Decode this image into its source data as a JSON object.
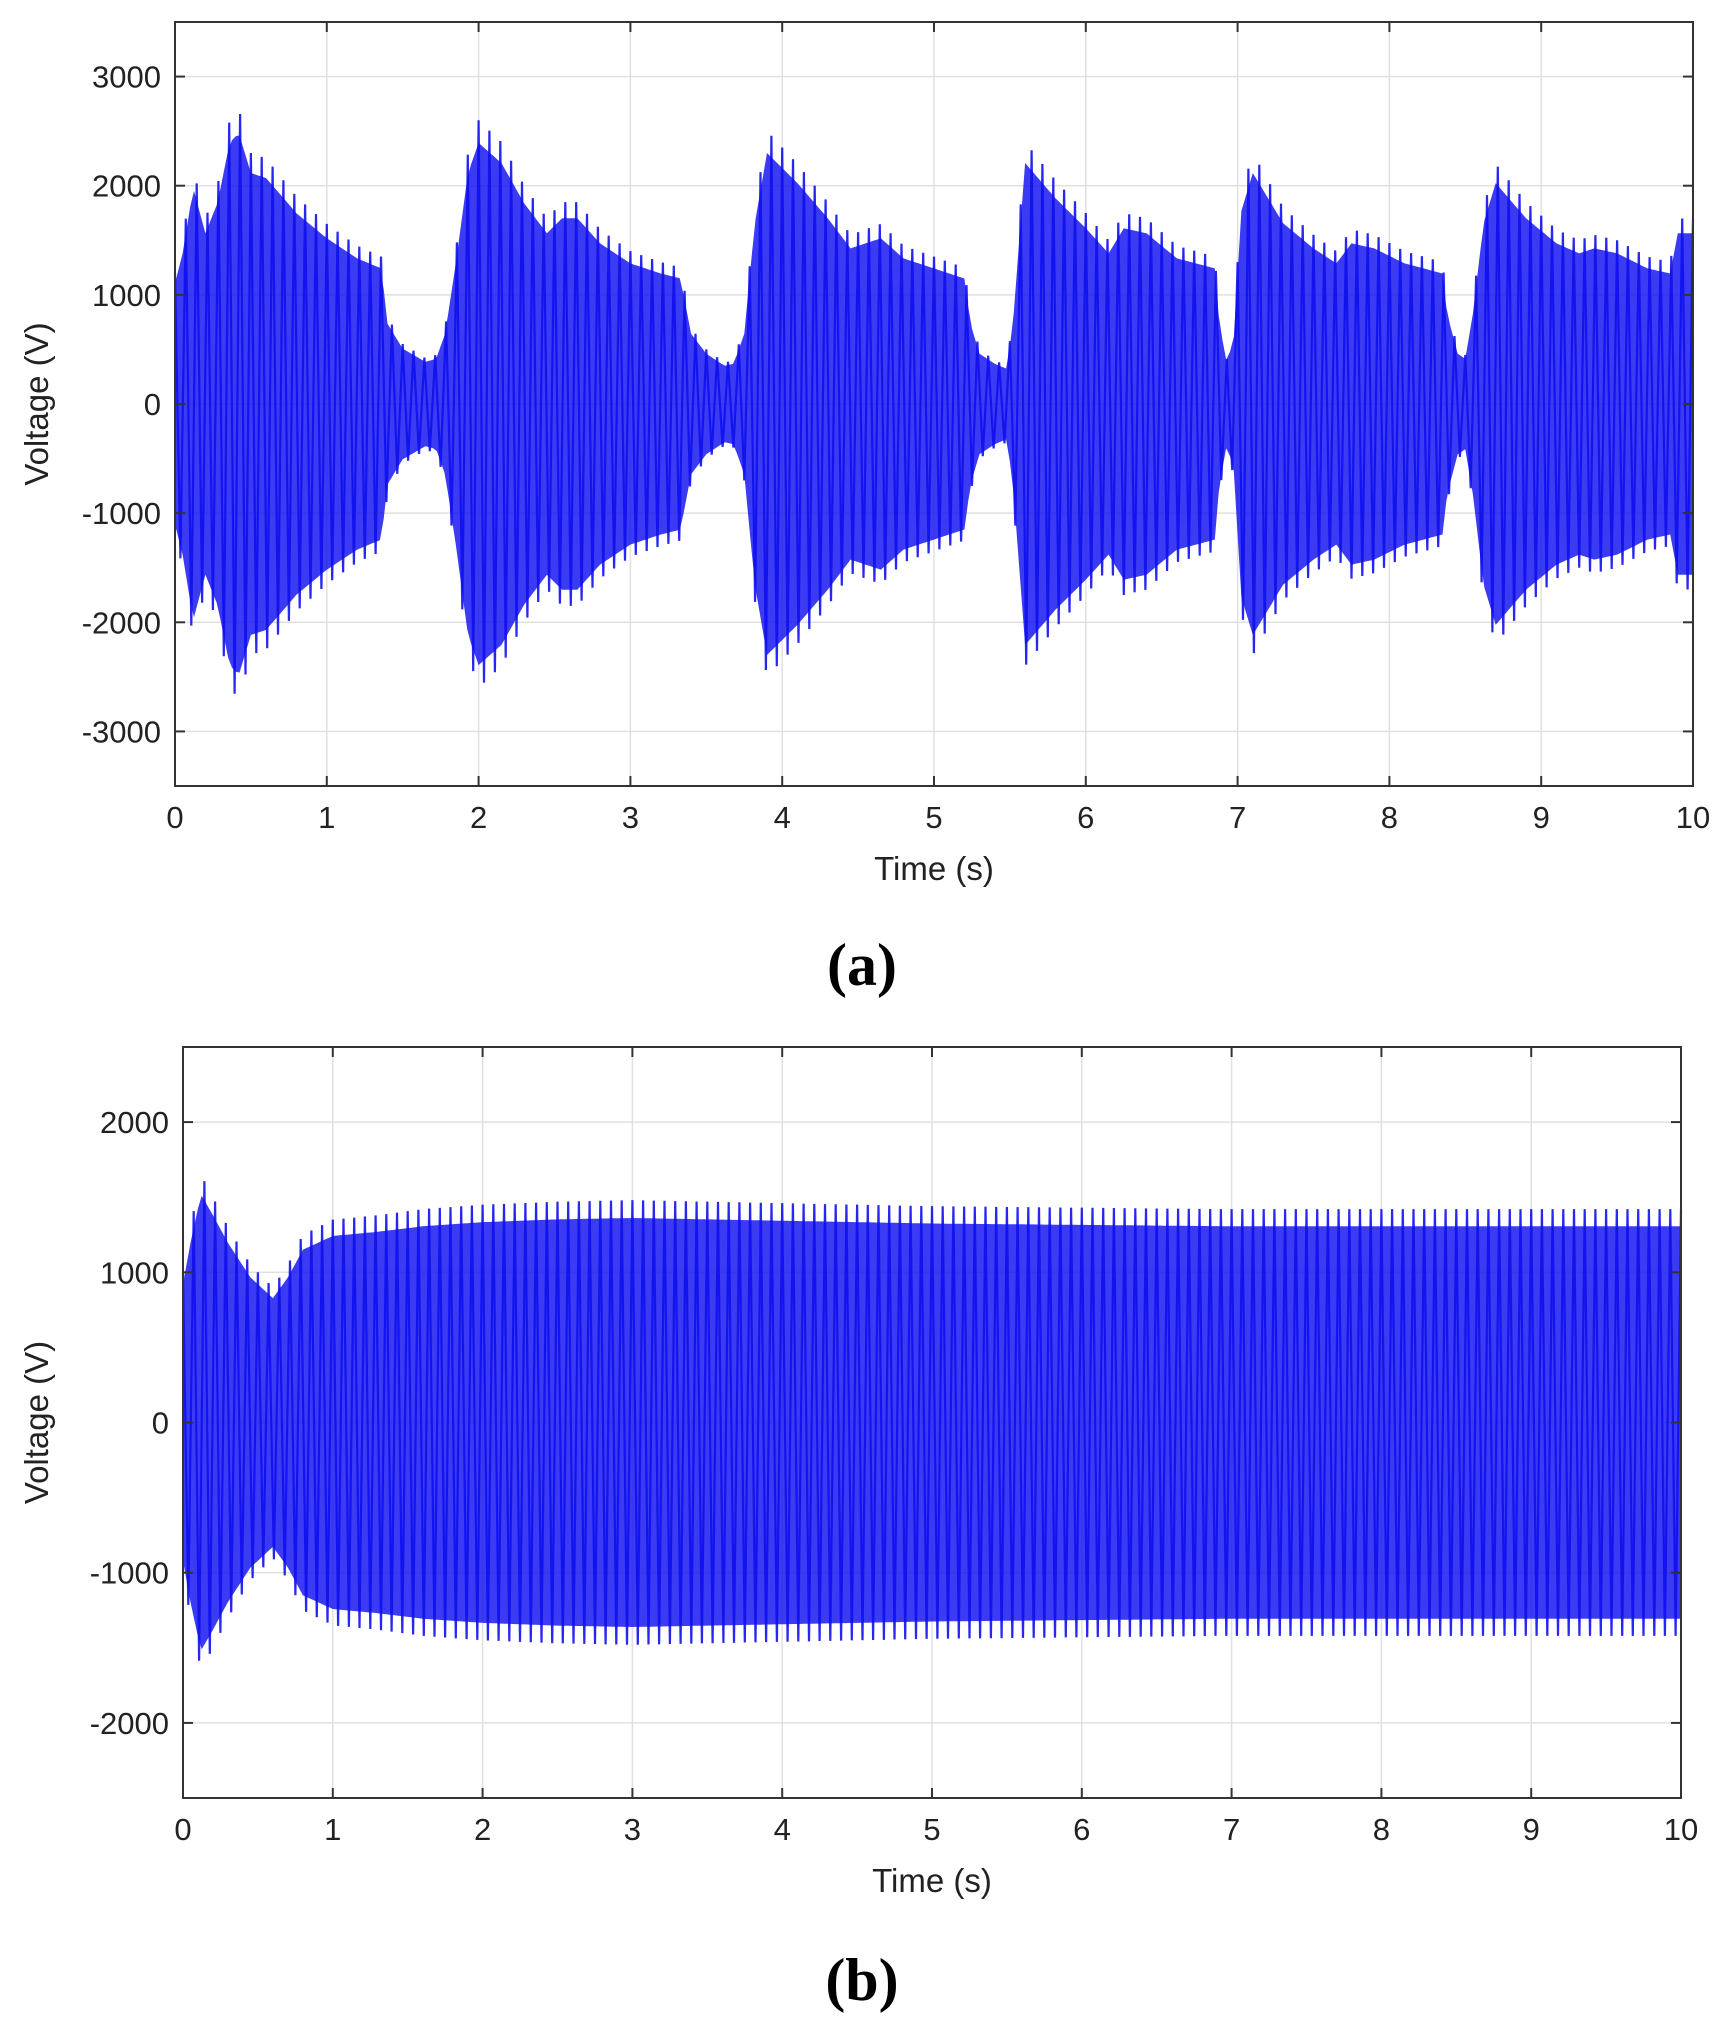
{
  "chart_data": [
    {
      "panel": "(a)",
      "type": "line",
      "title": "",
      "xlabel": "Time (s)",
      "ylabel": "Voltage (V)",
      "xlim": [
        0,
        10
      ],
      "ylim": [
        -3500,
        3500
      ],
      "xticks": [
        0,
        1,
        2,
        3,
        4,
        5,
        6,
        7,
        8,
        9,
        10
      ],
      "yticks": [
        -3000,
        -2000,
        -1000,
        0,
        1000,
        2000,
        3000
      ],
      "grid": true,
      "legend": "none",
      "line_color": "#1010f0",
      "signal": "dense oscillation, plotted as +/- envelope",
      "envelope": {
        "x": [
          0,
          0.05,
          0.12,
          0.2,
          0.28,
          0.36,
          0.42,
          0.5,
          0.6,
          0.8,
          1.0,
          1.2,
          1.36,
          1.4,
          1.5,
          1.65,
          1.72,
          1.78,
          1.85,
          1.93,
          2.0,
          2.15,
          2.3,
          2.45,
          2.55,
          2.65,
          2.8,
          3.0,
          3.2,
          3.33,
          3.4,
          3.5,
          3.62,
          3.68,
          3.75,
          3.82,
          3.9,
          4.1,
          4.3,
          4.45,
          4.55,
          4.65,
          4.8,
          5.0,
          5.2,
          5.24,
          5.3,
          5.4,
          5.48,
          5.52,
          5.6,
          5.8,
          6.0,
          6.15,
          6.25,
          6.4,
          6.6,
          6.85,
          6.88,
          6.93,
          6.98,
          7.02,
          7.1,
          7.3,
          7.5,
          7.65,
          7.75,
          7.9,
          8.1,
          8.35,
          8.38,
          8.45,
          8.5,
          8.55,
          8.62,
          8.7,
          8.9,
          9.1,
          9.25,
          9.35,
          9.5,
          9.7,
          9.85,
          9.9,
          10.0
        ],
        "amplitude": [
          1200,
          1500,
          2150,
          1700,
          2000,
          2600,
          2700,
          2300,
          2250,
          1900,
          1650,
          1450,
          1350,
          800,
          550,
          420,
          450,
          700,
          1400,
          2300,
          2600,
          2400,
          2000,
          1700,
          1850,
          1850,
          1600,
          1400,
          1300,
          1250,
          700,
          500,
          380,
          400,
          700,
          1800,
          2500,
          2200,
          1850,
          1550,
          1600,
          1650,
          1450,
          1350,
          1250,
          800,
          500,
          400,
          350,
          800,
          2400,
          2050,
          1750,
          1500,
          1750,
          1700,
          1450,
          1350,
          800,
          400,
          700,
          1900,
          2300,
          1800,
          1550,
          1400,
          1600,
          1550,
          1400,
          1300,
          900,
          500,
          450,
          900,
          1800,
          2200,
          1850,
          1600,
          1500,
          1550,
          1500,
          1350,
          1300,
          1700,
          1700
        ]
      }
    },
    {
      "panel": "(b)",
      "type": "line",
      "title": "",
      "xlabel": "Time (s)",
      "ylabel": "Voltage (V)",
      "xlim": [
        0,
        10
      ],
      "ylim": [
        -2500,
        2500
      ],
      "xticks": [
        0,
        1,
        2,
        3,
        4,
        5,
        6,
        7,
        8,
        9,
        10
      ],
      "yticks": [
        -2000,
        -1000,
        0,
        1000,
        2000
      ],
      "grid": true,
      "legend": "none",
      "line_color": "#1010f0",
      "signal": "dense oscillation, plotted as +/- envelope",
      "envelope": {
        "x": [
          0,
          0.05,
          0.12,
          0.2,
          0.3,
          0.45,
          0.6,
          0.7,
          0.8,
          1.0,
          1.3,
          1.6,
          2.0,
          2.5,
          3.0,
          3.5,
          4.0,
          5.0,
          6.0,
          7.0,
          8.0,
          9.0,
          10.0
        ],
        "amplitude": [
          1000,
          1300,
          1650,
          1500,
          1300,
          1050,
          900,
          1050,
          1250,
          1350,
          1380,
          1420,
          1450,
          1470,
          1480,
          1470,
          1460,
          1440,
          1430,
          1420,
          1420,
          1420,
          1420
        ]
      }
    }
  ]
}
